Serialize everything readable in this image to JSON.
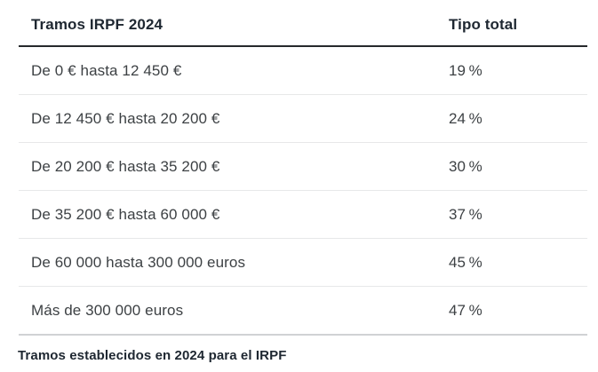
{
  "chart_data": {
    "type": "table",
    "columns": [
      "Tramos IRPF 2024",
      "Tipo total"
    ],
    "rows": [
      {
        "tramo": "De 0 € hasta 12 450 €",
        "tipo": "19 %",
        "tipo_value": 19
      },
      {
        "tramo": "De 12 450 € hasta 20 200 €",
        "tipo": "24 %",
        "tipo_value": 24
      },
      {
        "tramo": "De 20 200 € hasta 35 200 €",
        "tipo": "30 %",
        "tipo_value": 30
      },
      {
        "tramo": "De 35 200 € hasta 60 000 €",
        "tipo": "37 %",
        "tipo_value": 37
      },
      {
        "tramo": "De 60 000 hasta 300 000 euros",
        "tipo": "45 %",
        "tipo_value": 45
      },
      {
        "tramo": "Más de 300 000 euros",
        "tipo": "47 %",
        "tipo_value": 47
      }
    ],
    "caption": "Tramos establecidos en 2024 para el IRPF"
  },
  "colors": {
    "background": "#ffffff",
    "header_text": "#1e2731",
    "body_text": "#3d4144",
    "header_rule": "#26292c",
    "row_divider": "#e7e8e9",
    "bottom_rule": "#d0d2d4"
  }
}
